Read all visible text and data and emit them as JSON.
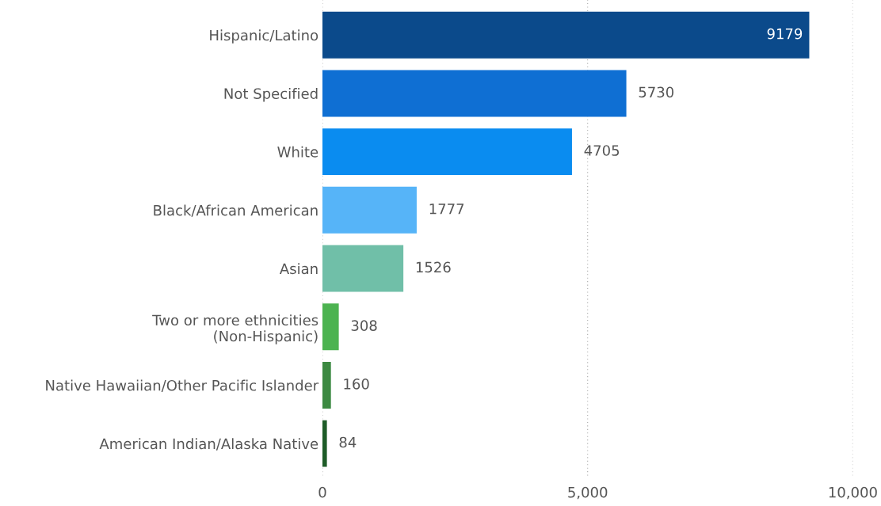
{
  "chart_data": {
    "type": "bar",
    "orientation": "horizontal",
    "categories": [
      "Hispanic/Latino",
      "Not Specified",
      "White",
      "Black/African American",
      "Asian",
      "Two or more ethnicities\n(Non-Hispanic)",
      "Native Hawaiian/Other Pacific Islander",
      "American Indian/Alaska Native"
    ],
    "values": [
      9179,
      5730,
      4705,
      1777,
      1526,
      308,
      160,
      84
    ],
    "colors": [
      "#0b4a8b",
      "#0f6fd3",
      "#0a8cf0",
      "#56b4f8",
      "#70bfa8",
      "#4cb350",
      "#3d8a42",
      "#1e5c28"
    ],
    "xlim": [
      0,
      10000
    ],
    "xticks": [
      0,
      {
        "value": 5000,
        "label": "5,000"
      },
      {
        "value": 10000,
        "label": "10,000"
      }
    ],
    "grid": "x",
    "data_labels": true
  }
}
